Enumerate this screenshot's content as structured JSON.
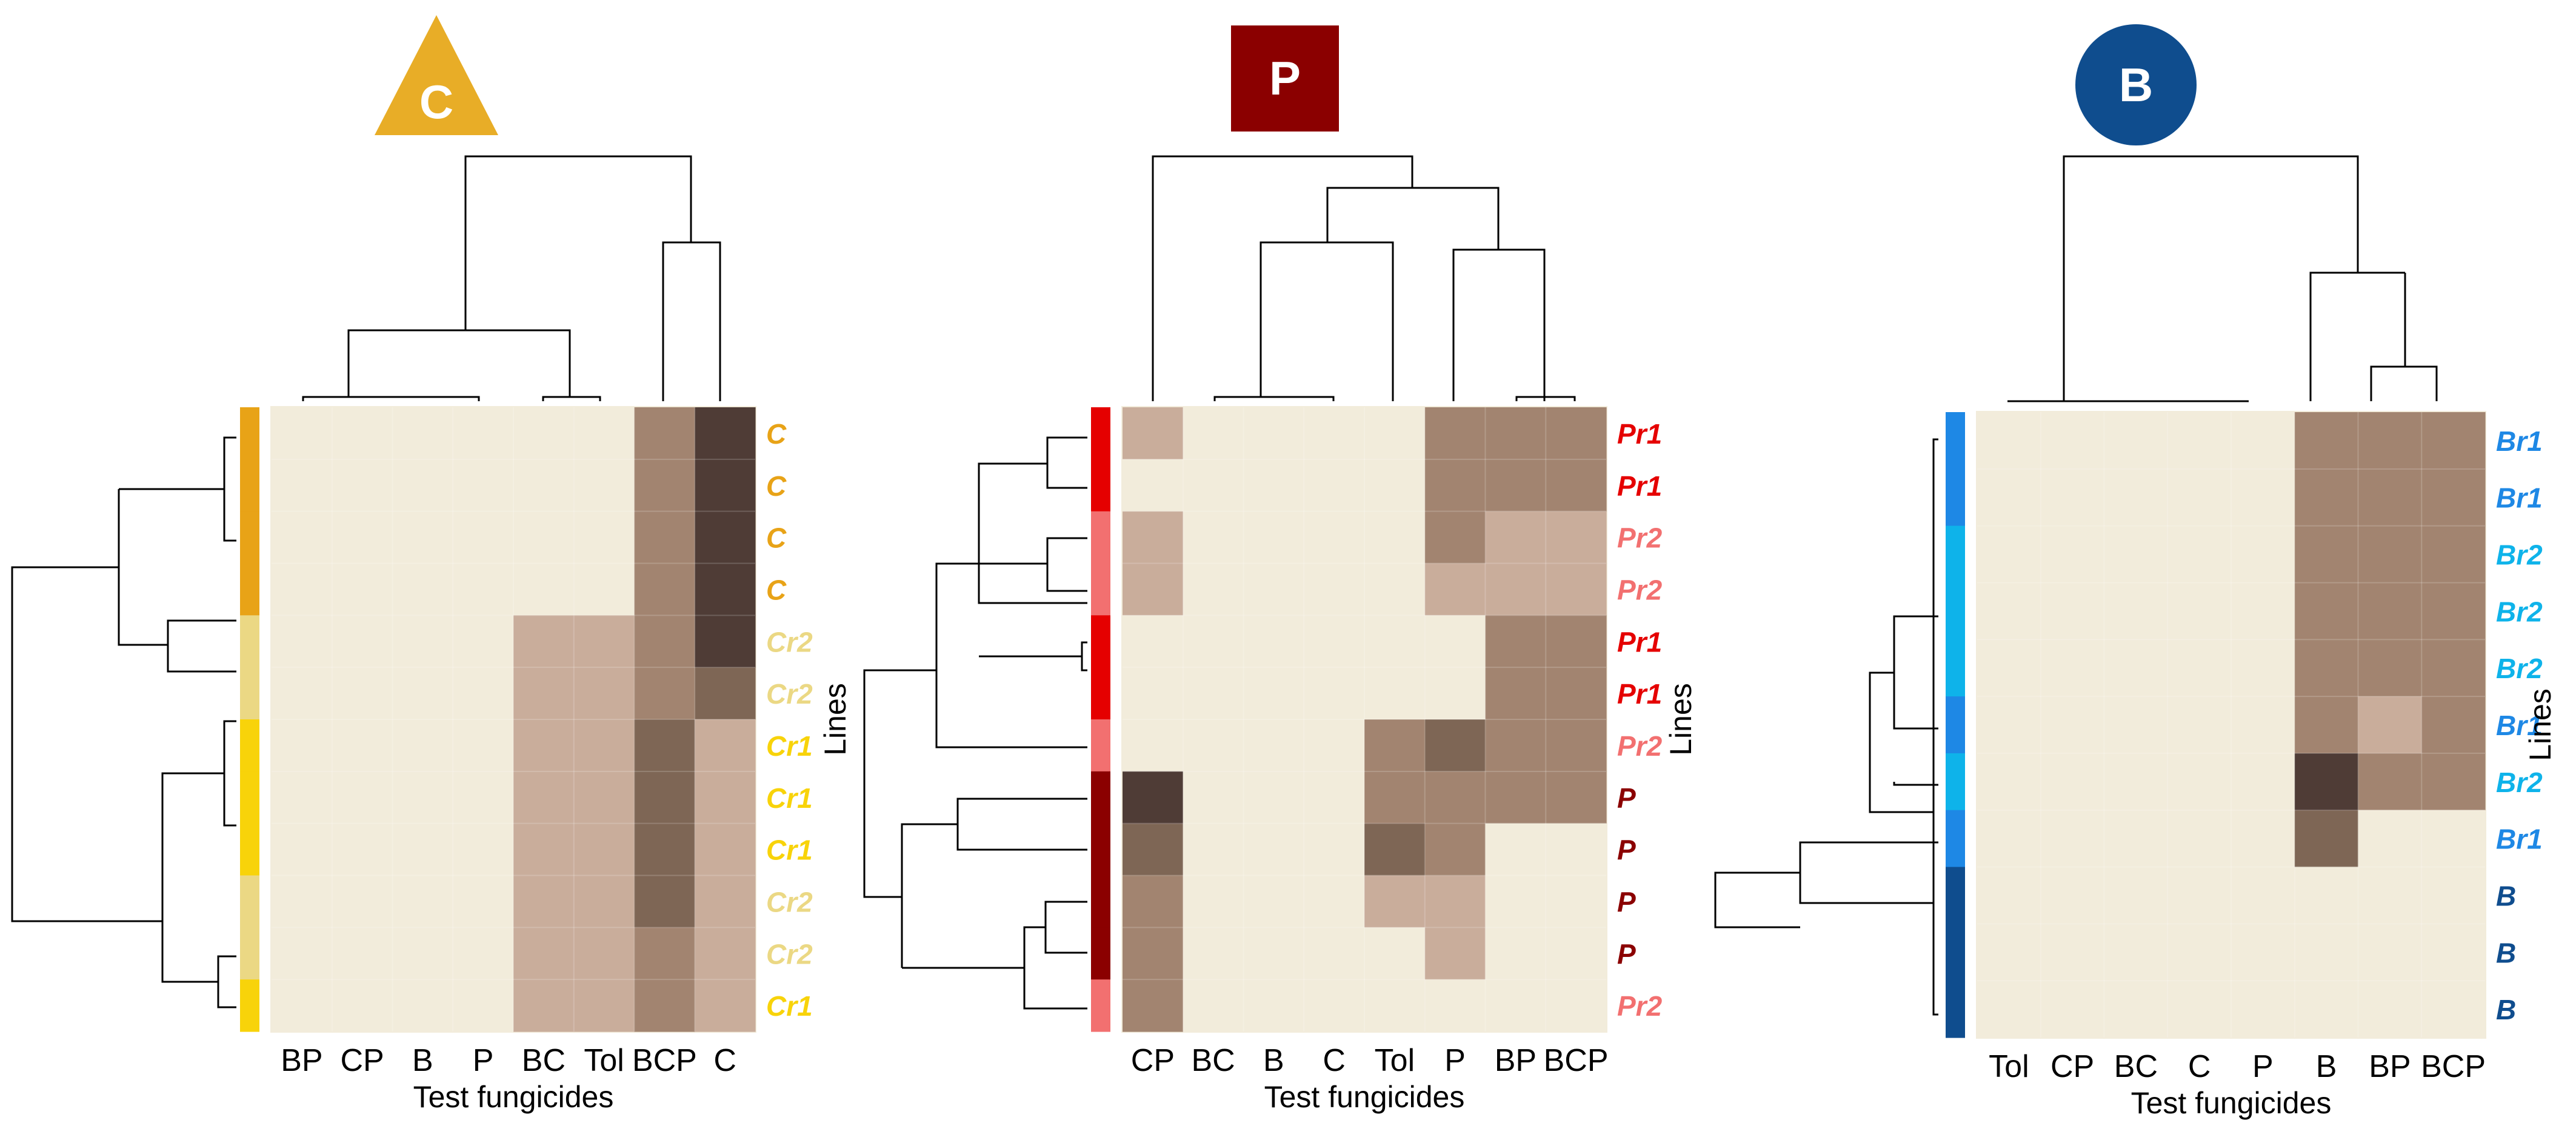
{
  "colors": {
    "heat": [
      "#f2ecdb",
      "#c9ad9b",
      "#a28470",
      "#7e6655",
      "#4f3c36"
    ],
    "dendrogram": "#000000",
    "text": "#000000"
  },
  "chart_data": [
    {
      "type": "heatmap",
      "badge": {
        "label": "C",
        "shape": "triangle",
        "color": "#e8ad27"
      },
      "columns": [
        "BP",
        "CP",
        "B",
        "P",
        "BC",
        "Tol",
        "BCP",
        "C"
      ],
      "rows": [
        {
          "label": "C",
          "color": "#e8a317"
        },
        {
          "label": "C",
          "color": "#e8a317"
        },
        {
          "label": "C",
          "color": "#e8a317"
        },
        {
          "label": "C",
          "color": "#e8a317"
        },
        {
          "label": "Cr2",
          "color": "#ebd884"
        },
        {
          "label": "Cr2",
          "color": "#ebd884"
        },
        {
          "label": "Cr1",
          "color": "#f8d30a"
        },
        {
          "label": "Cr1",
          "color": "#f8d30a"
        },
        {
          "label": "Cr1",
          "color": "#f8d30a"
        },
        {
          "label": "Cr2",
          "color": "#ebd884"
        },
        {
          "label": "Cr2",
          "color": "#ebd884"
        },
        {
          "label": "Cr1",
          "color": "#f8d30a"
        }
      ],
      "values": [
        [
          0,
          0,
          0,
          0,
          0,
          0,
          2,
          4
        ],
        [
          0,
          0,
          0,
          0,
          0,
          0,
          2,
          4
        ],
        [
          0,
          0,
          0,
          0,
          0,
          0,
          2,
          4
        ],
        [
          0,
          0,
          0,
          0,
          0,
          0,
          2,
          4
        ],
        [
          0,
          0,
          0,
          0,
          1,
          1,
          2,
          4
        ],
        [
          0,
          0,
          0,
          0,
          1,
          1,
          2,
          3
        ],
        [
          0,
          0,
          0,
          0,
          1,
          1,
          3,
          1
        ],
        [
          0,
          0,
          0,
          0,
          1,
          1,
          3,
          1
        ],
        [
          0,
          0,
          0,
          0,
          1,
          1,
          3,
          1
        ],
        [
          0,
          0,
          0,
          0,
          1,
          1,
          3,
          1
        ],
        [
          0,
          0,
          0,
          0,
          1,
          1,
          2,
          1
        ],
        [
          0,
          0,
          0,
          0,
          1,
          1,
          2,
          1
        ]
      ],
      "xlabel": "Test fungicides",
      "ylabel": "Lines",
      "show_ylabel": false
    },
    {
      "type": "heatmap",
      "badge": {
        "label": "P",
        "shape": "square",
        "color": "#8b0000"
      },
      "columns": [
        "CP",
        "BC",
        "B",
        "C",
        "Tol",
        "P",
        "BP",
        "BCP"
      ],
      "rows": [
        {
          "label": "Pr1",
          "color": "#e50000"
        },
        {
          "label": "Pr1",
          "color": "#e50000"
        },
        {
          "label": "Pr2",
          "color": "#f27070"
        },
        {
          "label": "Pr2",
          "color": "#f27070"
        },
        {
          "label": "Pr1",
          "color": "#e50000"
        },
        {
          "label": "Pr1",
          "color": "#e50000"
        },
        {
          "label": "Pr2",
          "color": "#f27070"
        },
        {
          "label": "P",
          "color": "#8b0000"
        },
        {
          "label": "P",
          "color": "#8b0000"
        },
        {
          "label": "P",
          "color": "#8b0000"
        },
        {
          "label": "P",
          "color": "#8b0000"
        },
        {
          "label": "Pr2",
          "color": "#f27070"
        }
      ],
      "values": [
        [
          1,
          0,
          0,
          0,
          0,
          2,
          2,
          2
        ],
        [
          0,
          0,
          0,
          0,
          0,
          2,
          2,
          2
        ],
        [
          1,
          0,
          0,
          0,
          0,
          2,
          1,
          1
        ],
        [
          1,
          0,
          0,
          0,
          0,
          1,
          1,
          1
        ],
        [
          0,
          0,
          0,
          0,
          0,
          0,
          2,
          2
        ],
        [
          0,
          0,
          0,
          0,
          0,
          0,
          2,
          2
        ],
        [
          0,
          0,
          0,
          0,
          2,
          3,
          2,
          2
        ],
        [
          4,
          0,
          0,
          0,
          2,
          2,
          2,
          2
        ],
        [
          3,
          0,
          0,
          0,
          3,
          2,
          0,
          0
        ],
        [
          2,
          0,
          0,
          0,
          1,
          1,
          0,
          0
        ],
        [
          2,
          0,
          0,
          0,
          0,
          1,
          0,
          0
        ],
        [
          2,
          0,
          0,
          0,
          0,
          0,
          0,
          0
        ]
      ],
      "xlabel": "Test fungicides",
      "ylabel": "Lines",
      "show_ylabel": true
    },
    {
      "type": "heatmap",
      "badge": {
        "label": "B",
        "shape": "circle",
        "color": "#0f4d8e"
      },
      "columns": [
        "Tol",
        "CP",
        "BC",
        "C",
        "P",
        "B",
        "BP",
        "BCP"
      ],
      "rows": [
        {
          "label": "Br1",
          "color": "#1e88e5"
        },
        {
          "label": "Br1",
          "color": "#1e88e5"
        },
        {
          "label": "Br2",
          "color": "#0eb3ea"
        },
        {
          "label": "Br2",
          "color": "#0eb3ea"
        },
        {
          "label": "Br2",
          "color": "#0eb3ea"
        },
        {
          "label": "Br1",
          "color": "#1e88e5"
        },
        {
          "label": "Br2",
          "color": "#0eb3ea"
        },
        {
          "label": "Br1",
          "color": "#1e88e5"
        },
        {
          "label": "B",
          "color": "#0f4d8e"
        },
        {
          "label": "B",
          "color": "#0f4d8e"
        },
        {
          "label": "B",
          "color": "#0f4d8e"
        }
      ],
      "values": [
        [
          0,
          0,
          0,
          0,
          0,
          2,
          2,
          2
        ],
        [
          0,
          0,
          0,
          0,
          0,
          2,
          2,
          2
        ],
        [
          0,
          0,
          0,
          0,
          0,
          2,
          2,
          2
        ],
        [
          0,
          0,
          0,
          0,
          0,
          2,
          2,
          2
        ],
        [
          0,
          0,
          0,
          0,
          0,
          2,
          2,
          2
        ],
        [
          0,
          0,
          0,
          0,
          0,
          2,
          1,
          2
        ],
        [
          0,
          0,
          0,
          0,
          0,
          4,
          2,
          2
        ],
        [
          0,
          0,
          0,
          0,
          0,
          3,
          0,
          0
        ],
        [
          0,
          0,
          0,
          0,
          0,
          0,
          0,
          0
        ],
        [
          0,
          0,
          0,
          0,
          0,
          0,
          0,
          0
        ],
        [
          0,
          0,
          0,
          0,
          0,
          0,
          0,
          0
        ]
      ],
      "xlabel": "Test fungicides",
      "ylabel": "Lines",
      "show_ylabel": true
    }
  ]
}
